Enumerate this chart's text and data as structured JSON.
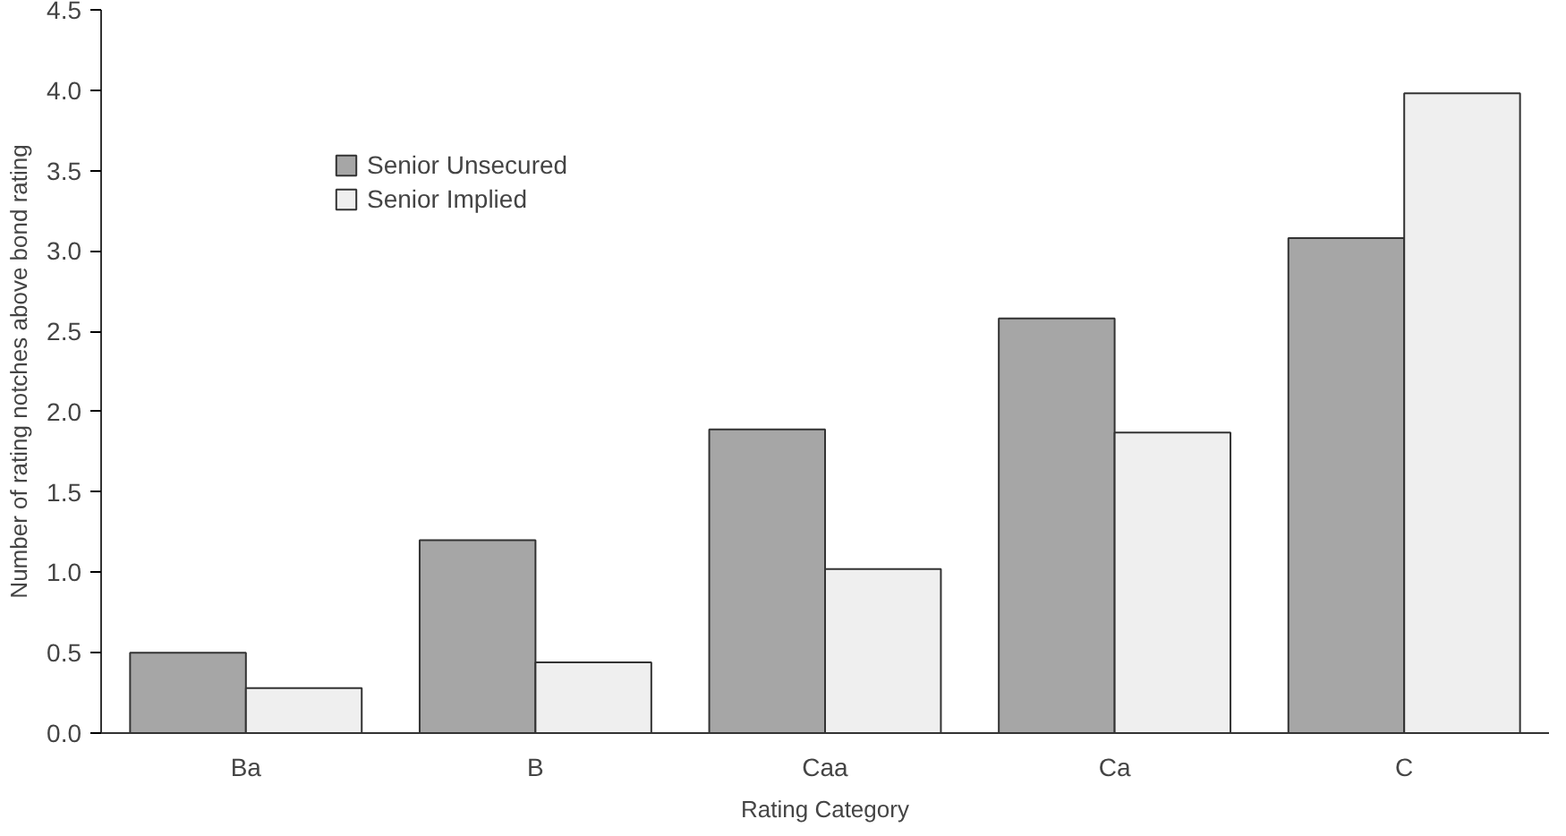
{
  "chart_data": {
    "type": "bar",
    "xlabel": "Rating Category",
    "ylabel": "Number of rating notches above bond rating",
    "categories": [
      "Ba",
      "B",
      "Caa",
      "Ca",
      "C"
    ],
    "series": [
      {
        "name": "Senior Unsecured",
        "color": "#a6a6a6",
        "values": [
          0.5,
          1.2,
          1.89,
          2.58,
          3.08
        ]
      },
      {
        "name": "Senior Implied",
        "color": "#efefef",
        "values": [
          0.28,
          0.44,
          1.02,
          1.87,
          3.98
        ]
      }
    ],
    "ylim": [
      0,
      4.5
    ],
    "yticks": [
      {
        "value": 0,
        "label": "0.0"
      },
      {
        "value": 0.5,
        "label": "0.5"
      },
      {
        "value": 1,
        "label": "1.0"
      },
      {
        "value": 1.5,
        "label": "1.5"
      },
      {
        "value": 2,
        "label": "2.0"
      },
      {
        "value": 2.5,
        "label": "2.5"
      },
      {
        "value": 3,
        "label": "3.0"
      },
      {
        "value": 3.5,
        "label": "3.5"
      },
      {
        "value": 4,
        "label": "4.0"
      },
      {
        "value": 4.5,
        "label": "4.5"
      }
    ],
    "grid": false,
    "legend": "top left"
  }
}
